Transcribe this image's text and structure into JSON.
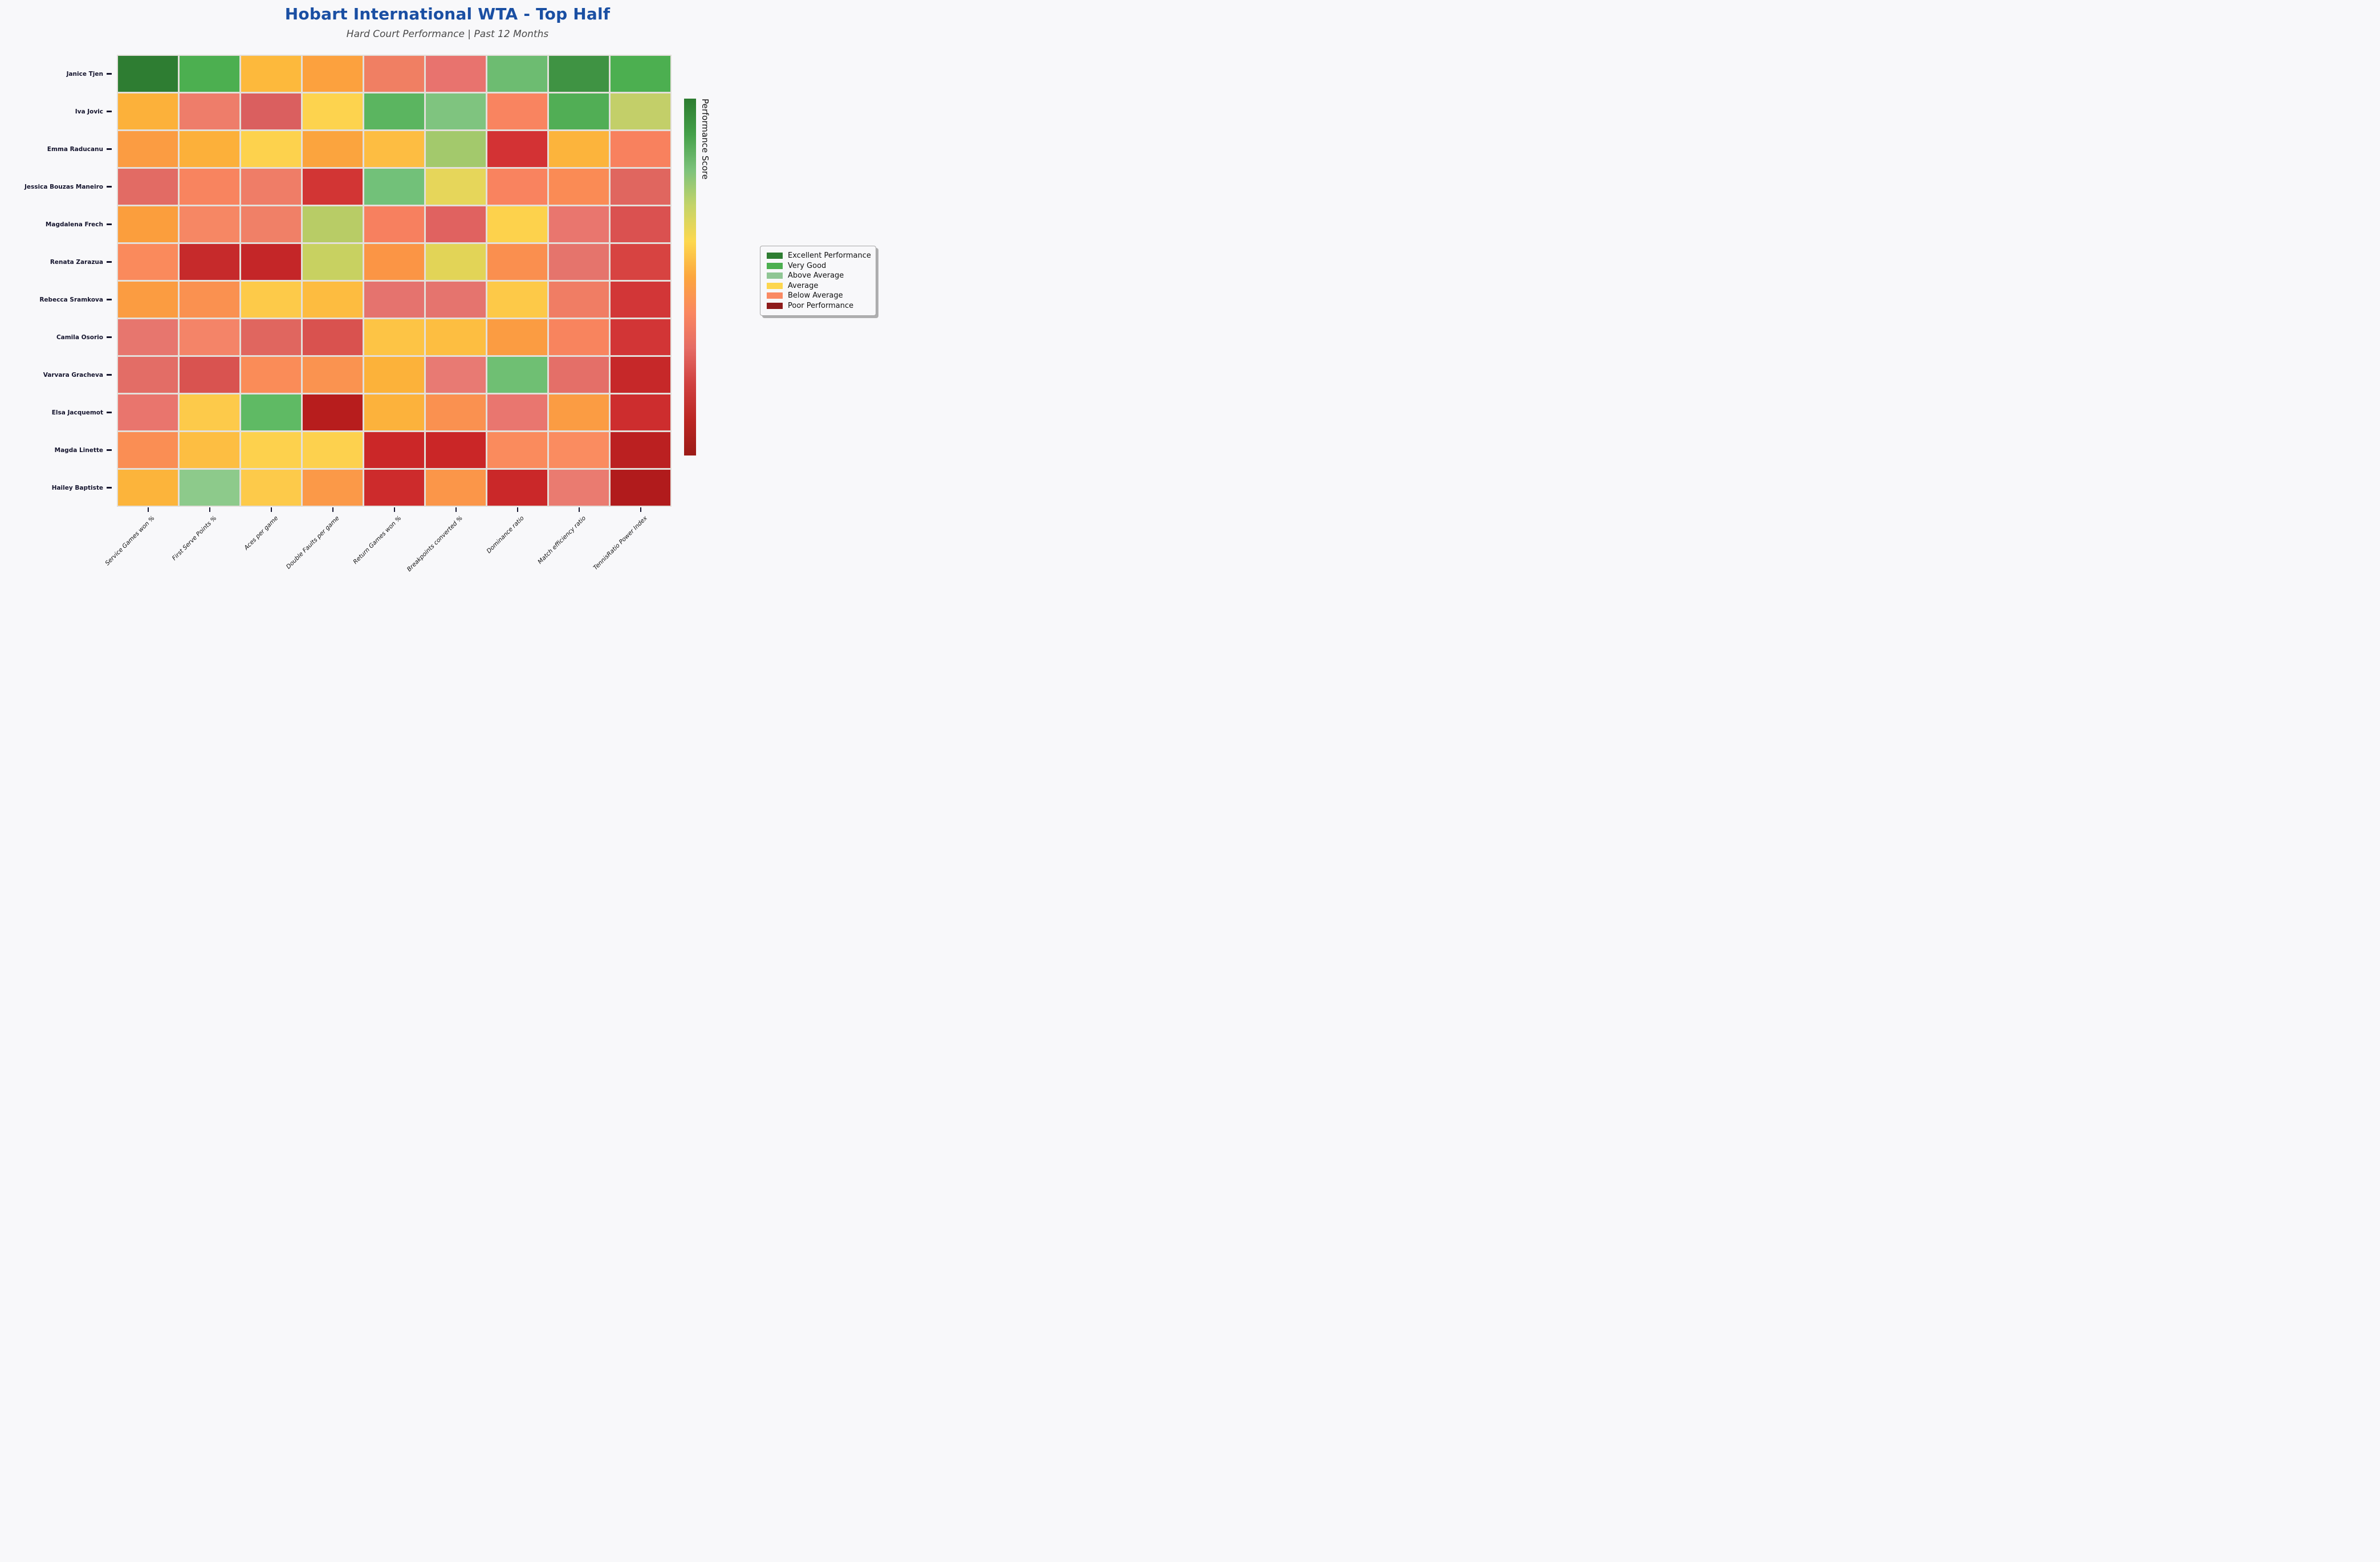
{
  "meta": {
    "background_color": "#f8f8fa",
    "title_color": "#1a4fa3"
  },
  "header": {
    "title": "Hobart International WTA - Top Half",
    "subtitle": "Hard Court Performance | Past 12 Months"
  },
  "chart_data": {
    "type": "heatmap",
    "title": "Hobart International WTA - Top Half",
    "subtitle": "Hard Court Performance | Past 12 Months",
    "rows": [
      "Janice Tjen",
      "Iva Jovic",
      "Emma Raducanu",
      "Jessica Bouzas Maneiro",
      "Magdalena Frech",
      "Renata Zarazua",
      "Rebecca Sramkova",
      "Camila Osorio",
      "Varvara Gracheva",
      "Elsa Jacquemot",
      "Magda Linette",
      "Hailey Baptiste"
    ],
    "columns": [
      "Service Games won %",
      "First Serve Points %",
      "Aces per game",
      "Double Faults per game",
      "Return Games won %",
      "Breakpoints converted %",
      "Dominance ratio",
      "Match efficiency ratio",
      "TennisRatio Power Index"
    ],
    "x_tick_rotation": 45,
    "cell_colors": [
      [
        "#2e7d32",
        "#4caf50",
        "#fdb93c",
        "#fca13e",
        "#f07f63",
        "#e8736e",
        "#6dbc71",
        "#3f9343",
        "#4caf50"
      ],
      [
        "#fcb13a",
        "#ee7d6a",
        "#da5f5f",
        "#fdd34e",
        "#5bb560",
        "#7fc47f",
        "#f98460",
        "#51ae55",
        "#c3cf69"
      ],
      [
        "#fb9c42",
        "#fcb03a",
        "#fdd24d",
        "#fba43e",
        "#fdbd42",
        "#a3c96c",
        "#d33234",
        "#fcb43c",
        "#f8815e"
      ],
      [
        "#e26b64",
        "#f8845f",
        "#ef7d67",
        "#d23534",
        "#72c179",
        "#e6d65a",
        "#f9835f",
        "#fa8b55",
        "#e0665f"
      ],
      [
        "#fb9e3d",
        "#f68764",
        "#f08067",
        "#b8cc66",
        "#f7805f",
        "#e06260",
        "#fdd24c",
        "#e9766e",
        "#da5150"
      ],
      [
        "#fa8a5c",
        "#c62a2b",
        "#c42628",
        "#c8d161",
        "#fb9545",
        "#e2d457",
        "#fa8f4f",
        "#e5746c",
        "#d74341"
      ],
      [
        "#fb9c41",
        "#fa9150",
        "#fdca49",
        "#fdbc40",
        "#e5736e",
        "#e5746e",
        "#fdc948",
        "#f07d64",
        "#d23637"
      ],
      [
        "#e7766e",
        "#f48468",
        "#e0665f",
        "#d9524f",
        "#fdc445",
        "#fdbe41",
        "#fb9c42",
        "#f8845e",
        "#d23536"
      ],
      [
        "#e36d66",
        "#d95350",
        "#fa8c58",
        "#fa9350",
        "#fcb23a",
        "#e87a73",
        "#6fbf73",
        "#e46f68",
        "#c62829"
      ],
      [
        "#e9756d",
        "#fdca4a",
        "#5fba64",
        "#b71d1d",
        "#fcb23c",
        "#fa9150",
        "#e9766f",
        "#fb9c43",
        "#cd2d2e"
      ],
      [
        "#fa8e54",
        "#fdbe42",
        "#fdd14d",
        "#fdd14e",
        "#cb2728",
        "#ca2627",
        "#fa8b5d",
        "#fa8c60",
        "#bb2021"
      ],
      [
        "#fcb43b",
        "#8dca8b",
        "#fdca4a",
        "#fb9948",
        "#cd2b2c",
        "#fb9649",
        "#ca2829",
        "#ea7b70",
        "#b11b1c"
      ]
    ],
    "values": [
      [
        95,
        82,
        60,
        55,
        40,
        38,
        75,
        88,
        83
      ],
      [
        58,
        39,
        30,
        64,
        80,
        74,
        44,
        81,
        70
      ],
      [
        52,
        58,
        64,
        55,
        60,
        71,
        22,
        59,
        44
      ],
      [
        36,
        43,
        40,
        22,
        77,
        67,
        43,
        46,
        34
      ],
      [
        53,
        42,
        40,
        70,
        42,
        33,
        64,
        38,
        28
      ],
      [
        46,
        16,
        15,
        71,
        51,
        67,
        48,
        38,
        26
      ],
      [
        52,
        49,
        61,
        60,
        37,
        37,
        61,
        40,
        23
      ],
      [
        37,
        42,
        34,
        28,
        62,
        60,
        52,
        44,
        23
      ],
      [
        36,
        28,
        45,
        48,
        58,
        36,
        76,
        37,
        17
      ],
      [
        37,
        61,
        80,
        8,
        58,
        49,
        37,
        52,
        20
      ],
      [
        47,
        60,
        64,
        64,
        14,
        13,
        45,
        45,
        10
      ],
      [
        59,
        73,
        61,
        50,
        19,
        51,
        18,
        39,
        6
      ]
    ],
    "score_scale": {
      "min": 0,
      "max": 100
    },
    "colorbar": {
      "label": "Performance Score",
      "gradient_top_to_bottom": [
        "#2c7c30",
        "#44a049",
        "#7cc27b",
        "#c4d468",
        "#fdd84e",
        "#fca63e",
        "#fa8760",
        "#e56b64",
        "#d04140",
        "#bb2623",
        "#9c1b17"
      ]
    },
    "legend": {
      "position": "right",
      "items": [
        {
          "label": "Excellent Performance",
          "color": "#2e7d32"
        },
        {
          "label": "Very Good",
          "color": "#4caf50"
        },
        {
          "label": "Above Average",
          "color": "#90c695"
        },
        {
          "label": "Average",
          "color": "#fdd64f"
        },
        {
          "label": "Below Average",
          "color": "#fa8a64"
        },
        {
          "label": "Poor Performance",
          "color": "#8e1b1b"
        }
      ]
    }
  }
}
